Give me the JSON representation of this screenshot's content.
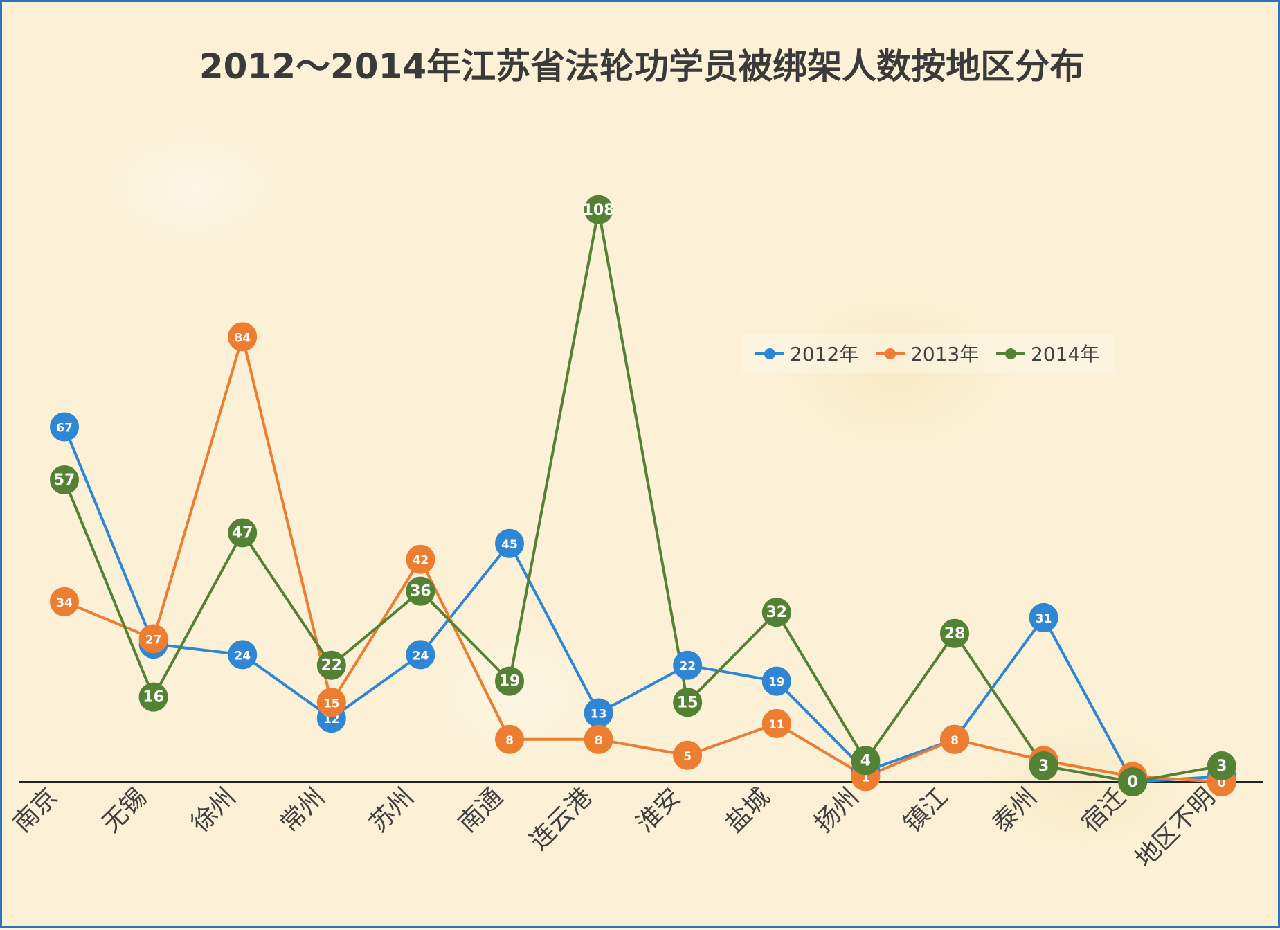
{
  "chart_data": {
    "type": "line",
    "title": "2012～2014年江苏省法轮功学员被绑架人数按地区分布",
    "xlabel": "",
    "ylabel": "",
    "ylim": [
      0,
      120
    ],
    "grid": false,
    "legend_position": "right-middle",
    "categories": [
      "南京",
      "无锡",
      "徐州",
      "常州",
      "苏州",
      "南通",
      "连云港",
      "淮安",
      "盐城",
      "扬州",
      "镇江",
      "泰州",
      "宿迁",
      "地区不明"
    ],
    "series": [
      {
        "name": "2012年",
        "color": "#2e86d4",
        "values": [
          67,
          26,
          24,
          12,
          24,
          45,
          13,
          22,
          19,
          2,
          8,
          31,
          0,
          1
        ]
      },
      {
        "name": "2013年",
        "color": "#ed7d31",
        "values": [
          34,
          27,
          84,
          15,
          42,
          8,
          8,
          5,
          11,
          1,
          8,
          4,
          1,
          0
        ]
      },
      {
        "name": "2014年",
        "color": "#548235",
        "values": [
          57,
          16,
          47,
          22,
          36,
          19,
          108,
          15,
          32,
          4,
          28,
          3,
          0,
          3
        ]
      }
    ]
  }
}
